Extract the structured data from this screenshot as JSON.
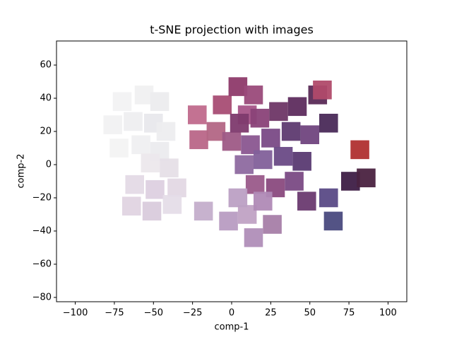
{
  "chart_data": {
    "type": "image_scatter",
    "title": "t-SNE projection with images",
    "x_label": "comp-1",
    "y_label": "comp-2",
    "xlim": [
      -112,
      112
    ],
    "ylim": [
      -82.6,
      74.5
    ],
    "xticks": [
      {
        "value": -100,
        "label": "−100"
      },
      {
        "value": -75,
        "label": "−75"
      },
      {
        "value": -50,
        "label": "−50"
      },
      {
        "value": -25,
        "label": "−25"
      },
      0,
      25,
      50,
      75,
      100
    ],
    "yticks": [
      {
        "value": -80,
        "label": "−80"
      },
      {
        "value": -60,
        "label": "−60"
      },
      {
        "value": -40,
        "label": "−40"
      },
      {
        "value": -20,
        "label": "−20"
      },
      0,
      20,
      40,
      60
    ],
    "x": [
      -70,
      -56,
      -46,
      -76,
      -63,
      -50,
      -42,
      -72,
      -58,
      -46,
      -52,
      -40,
      -62,
      -49,
      -35,
      -64,
      -51,
      -38,
      -22,
      -21,
      -6,
      4,
      14,
      10,
      -10,
      0,
      5,
      18,
      30,
      42,
      12,
      25,
      38,
      50,
      8,
      20,
      33,
      45,
      15,
      28,
      40,
      55,
      62,
      58,
      76,
      86,
      62,
      65,
      48,
      82,
      -18,
      -2,
      14,
      10,
      26,
      4,
      20
    ],
    "y": [
      38,
      42,
      38,
      24,
      26,
      25,
      20,
      10,
      12,
      8,
      1,
      -2,
      -12,
      -15,
      -14,
      -25,
      -28,
      -24,
      30,
      15,
      36,
      47,
      42,
      30,
      20,
      14,
      25,
      28,
      32,
      35,
      12,
      16,
      20,
      18,
      0,
      3,
      5,
      2,
      -12,
      -14,
      -10,
      42,
      25,
      45,
      -10,
      -8,
      -20,
      -34,
      -22,
      9,
      -28,
      -34,
      -44,
      -30,
      -36,
      -20,
      -22
    ],
    "colors": [
      "#f2f2f3",
      "#f0f0f1",
      "#ececee",
      "#f1f1f2",
      "#eeeef0",
      "#e8e8ec",
      "#ededef",
      "#f3f3f3",
      "#efeff1",
      "#ebebee",
      "#ece8ec",
      "#e6dfe7",
      "#e4dae6",
      "#ddd0e0",
      "#e3d8e4",
      "#e0d4e2",
      "#d9cbdc",
      "#e5dde8",
      "#c06a8c",
      "#b96688",
      "#a84d74",
      "#8e3a6a",
      "#9a4a7a",
      "#a65488",
      "#b36685",
      "#9e5a86",
      "#7e3a6e",
      "#8a4278",
      "#6e3666",
      "#5e2c5e",
      "#8a5690",
      "#7a4a86",
      "#5e3a70",
      "#70447e",
      "#8e6aa0",
      "#82609a",
      "#6a4a86",
      "#5a3a72",
      "#9a5a8a",
      "#8a4a7e",
      "#7a4a84",
      "#5a2a56",
      "#4a2a58",
      "#b04a6a",
      "#3e1e46",
      "#4a2240",
      "#5a4a86",
      "#4a4a7e",
      "#6a3a70",
      "#b03030",
      "#c4aecb",
      "#b89cc2",
      "#b08eb8",
      "#c0a2c4",
      "#a67ea8",
      "#bca0c4",
      "#b08ab6"
    ],
    "tile_size": 12
  }
}
